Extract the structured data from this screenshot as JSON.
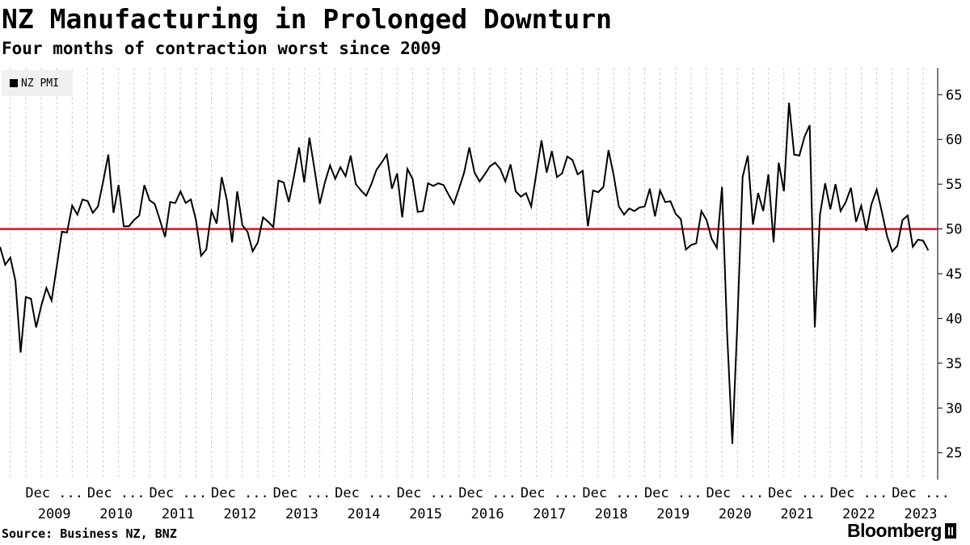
{
  "header": {
    "title": "NZ Manufacturing in Prolonged Downturn",
    "subtitle": "Four months of contraction worst since 2009"
  },
  "legend": {
    "label": "NZ PMI"
  },
  "footer": {
    "source": "Source: Business NZ, BNZ",
    "brand": "Bloomberg"
  },
  "colors": {
    "line": "#000000",
    "threshold": "#e0102a",
    "grid": "#cccccc",
    "axis": "#000000"
  },
  "chart_data": {
    "type": "line",
    "title": "NZ Manufacturing in Prolonged Downturn",
    "subtitle": "Four months of contraction worst since 2009",
    "ylim": [
      22,
      68
    ],
    "y_ticks": [
      25,
      30,
      35,
      40,
      45,
      50,
      55,
      60,
      65
    ],
    "y_axis_side": "right",
    "x_start": "2009-01",
    "x_end": "2023-04",
    "x_tick_labels": [
      "Dec ...",
      "Dec ...",
      "Dec ...",
      "Dec ...",
      "Dec ...",
      "Dec ...",
      "Dec ...",
      "Dec ...",
      "Dec ...",
      "Dec ...",
      "Dec ...",
      "Dec ...",
      "Dec ...",
      "Dec ...",
      "Dec ..."
    ],
    "x_year_labels": [
      "2009",
      "2010",
      "2011",
      "2012",
      "2013",
      "2014",
      "2015",
      "2016",
      "2017",
      "2018",
      "2019",
      "2020",
      "2021",
      "2022",
      "2023"
    ],
    "reference_line": {
      "value": 50
    },
    "legend_position": "top-left",
    "grid": "vertical-dashed",
    "series": [
      {
        "name": "NZ PMI",
        "values": [
          48.0,
          46.0,
          46.8,
          44.2,
          36.2,
          42.4,
          42.2,
          39.0,
          41.4,
          43.4,
          42.0,
          45.8,
          49.7,
          49.6,
          52.6,
          51.6,
          53.3,
          53.1,
          51.8,
          52.5,
          55.3,
          58.3,
          51.8,
          54.9,
          50.3,
          50.3,
          51.0,
          51.5,
          54.9,
          53.2,
          52.8,
          51.0,
          49.1,
          53.0,
          52.9,
          54.2,
          52.9,
          53.3,
          51.0,
          47.0,
          47.7,
          52.0,
          50.6,
          55.8,
          53.2,
          48.5,
          54.2,
          50.4,
          49.7,
          47.5,
          48.5,
          51.3,
          50.8,
          50.2,
          55.4,
          55.2,
          53.0,
          55.9,
          59.1,
          55.2,
          60.2,
          56.6,
          52.8,
          55.2,
          57.1,
          55.6,
          56.9,
          55.9,
          58.2,
          55.0,
          54.3,
          53.7,
          55.0,
          56.6,
          57.4,
          58.3,
          54.5,
          56.2,
          51.3,
          56.7,
          55.6,
          51.9,
          52.0,
          55.1,
          54.8,
          55.1,
          54.9,
          53.8,
          52.8,
          54.5,
          56.3,
          59.1,
          56.3,
          55.3,
          56.1,
          57.0,
          57.4,
          56.7,
          55.3,
          57.2,
          54.2,
          53.6,
          54.0,
          52.5,
          56.2,
          59.9,
          56.3,
          58.7,
          55.8,
          56.2,
          58.1,
          57.7,
          56.1,
          56.5,
          50.3,
          54.3,
          54.1,
          54.7,
          58.8,
          56.0,
          52.5,
          51.6,
          52.3,
          52.0,
          52.4,
          52.5,
          54.5,
          51.4,
          54.3,
          53.0,
          53.1,
          51.7,
          51.1,
          47.7,
          48.2,
          48.4,
          52.0,
          51.0,
          48.9,
          47.9,
          54.7,
          38.2,
          26.0,
          39.7,
          55.8,
          58.2,
          50.5,
          54.0,
          52.0,
          56.1,
          48.5,
          57.4,
          54.2,
          64.1,
          58.3,
          58.2,
          60.3,
          61.6,
          39.0,
          51.6,
          55.1,
          52.2,
          55.0,
          52.0,
          53.0,
          54.6,
          50.8,
          52.6,
          49.8,
          52.8,
          54.4,
          51.9,
          49.2,
          47.5,
          48.1,
          51.0,
          51.5,
          48.0,
          48.8,
          48.7,
          47.6
        ]
      }
    ]
  }
}
